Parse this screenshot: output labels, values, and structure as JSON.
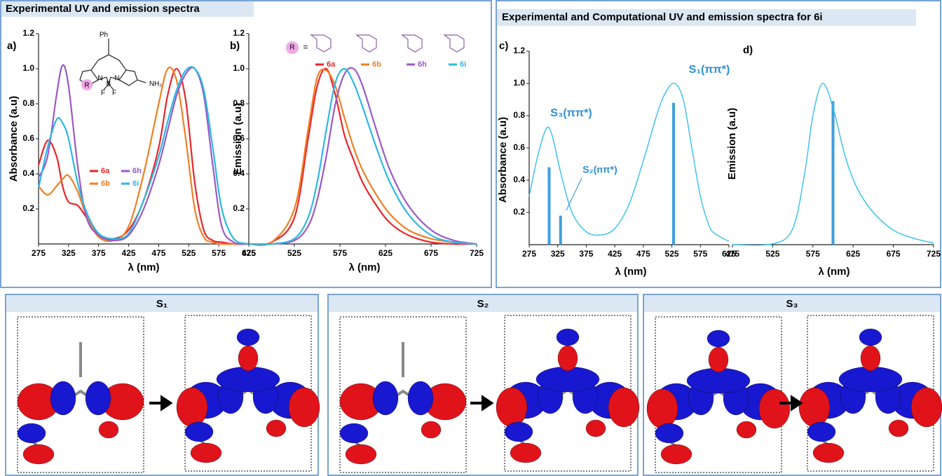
{
  "panels": {
    "left_title": "Experimental UV and emission spectra",
    "right_title": "Experimental and Computational UV and emission spectra for 6i"
  },
  "chart_data": [
    {
      "type": "line",
      "label": "a)",
      "y_label": "Absorbance (a.u)",
      "x_label": "λ (nm)",
      "structure_labels": [
        "Ph",
        "R",
        "N",
        "B",
        "N",
        "F",
        "F",
        "NH₂"
      ],
      "x": [
        275,
        290,
        305,
        315,
        325,
        340,
        355,
        375,
        400,
        425,
        450,
        475,
        490,
        505,
        520,
        535,
        550,
        565,
        580,
        600,
        625
      ],
      "xlim": [
        275,
        625
      ],
      "xticks": [
        275,
        325,
        375,
        425,
        475,
        525,
        575,
        625
      ],
      "ylim": [
        0,
        1.2
      ],
      "yticks": [
        0.2,
        0.4,
        0.6,
        0.8,
        {
          "value": 1,
          "label": "1.0"
        },
        1.2
      ],
      "series": [
        {
          "name": "6a",
          "color": "#e8262b",
          "values": [
            0.45,
            0.59,
            0.5,
            0.33,
            0.24,
            0.22,
            0.15,
            0.05,
            0.03,
            0.08,
            0.25,
            0.55,
            0.85,
            1.0,
            0.82,
            0.35,
            0.08,
            0.02,
            0.01,
            0,
            0
          ]
        },
        {
          "name": "6b",
          "color": "#f07f22",
          "values": [
            0.33,
            0.28,
            0.33,
            0.37,
            0.39,
            0.3,
            0.16,
            0.04,
            0.02,
            0.1,
            0.4,
            0.8,
            1.0,
            0.93,
            0.6,
            0.2,
            0.04,
            0.01,
            0,
            0,
            0
          ]
        },
        {
          "name": "6h",
          "color": "#9b59c6",
          "values": [
            0.38,
            0.5,
            0.85,
            1.02,
            0.9,
            0.45,
            0.15,
            0.05,
            0.02,
            0.05,
            0.2,
            0.45,
            0.65,
            0.85,
            0.97,
            1.0,
            0.85,
            0.45,
            0.1,
            0.01,
            0
          ]
        },
        {
          "name": "6i",
          "color": "#2cb7e4",
          "values": [
            0.32,
            0.55,
            0.71,
            0.69,
            0.6,
            0.35,
            0.18,
            0.06,
            0.03,
            0.06,
            0.25,
            0.5,
            0.7,
            0.88,
            0.99,
            1.0,
            0.88,
            0.55,
            0.2,
            0.03,
            0
          ]
        }
      ]
    },
    {
      "type": "line",
      "label": "b)",
      "y_label": "Emission (a.u)",
      "x_label": "λ (nm)",
      "inset_labels": [
        "R",
        "="
      ],
      "x": [
        475,
        500,
        525,
        540,
        550,
        560,
        570,
        580,
        590,
        600,
        615,
        630,
        650,
        675,
        700,
        725
      ],
      "xlim": [
        475,
        725
      ],
      "xticks": [
        475,
        525,
        575,
        625,
        675,
        725
      ],
      "ylim": [
        0,
        1.2
      ],
      "yticks": [
        0.2,
        0.4,
        0.6,
        0.8,
        {
          "value": 1,
          "label": "1.0"
        },
        1.2
      ],
      "series": [
        {
          "name": "6a",
          "color": "#e8262b",
          "values": [
            0,
            0.01,
            0.15,
            0.6,
            0.9,
            1.0,
            0.85,
            0.62,
            0.48,
            0.35,
            0.22,
            0.12,
            0.05,
            0.01,
            0,
            0
          ]
        },
        {
          "name": "6b",
          "color": "#f07f22",
          "values": [
            0,
            0.01,
            0.2,
            0.65,
            0.95,
            0.99,
            0.9,
            0.72,
            0.55,
            0.42,
            0.28,
            0.17,
            0.08,
            0.03,
            0.01,
            0
          ]
        },
        {
          "name": "6h",
          "color": "#9b59c6",
          "values": [
            0,
            0,
            0.02,
            0.1,
            0.25,
            0.5,
            0.8,
            0.97,
            1.0,
            0.9,
            0.65,
            0.42,
            0.22,
            0.08,
            0.02,
            0
          ]
        },
        {
          "name": "6i",
          "color": "#2cb7e4",
          "values": [
            0,
            0,
            0.03,
            0.15,
            0.35,
            0.65,
            0.92,
            1.0,
            0.92,
            0.78,
            0.55,
            0.35,
            0.17,
            0.05,
            0.01,
            0
          ]
        }
      ]
    },
    {
      "type": "line",
      "label": "c)",
      "y_label": "Absorbance (a.u)",
      "x_label": "λ (nm)",
      "annotations": [
        "S₁(ππ*)",
        "S₃(ππ*)",
        "S₂(nπ*)"
      ],
      "x": [
        275,
        290,
        305,
        315,
        330,
        350,
        375,
        400,
        425,
        450,
        475,
        500,
        515,
        530,
        545,
        560,
        575,
        590,
        600,
        625
      ],
      "xlim": [
        275,
        625
      ],
      "xticks": [
        275,
        325,
        375,
        425,
        475,
        525,
        575,
        625
      ],
      "ylim": [
        0,
        1.2
      ],
      "yticks": [
        0.2,
        0.4,
        0.6,
        0.8,
        {
          "value": 1,
          "label": "1.0"
        },
        1.2
      ],
      "series": [
        {
          "color": "#33c0ec",
          "values": [
            0.3,
            0.55,
            0.72,
            0.68,
            0.45,
            0.2,
            0.08,
            0.06,
            0.1,
            0.25,
            0.52,
            0.82,
            0.95,
            1.0,
            0.9,
            0.6,
            0.3,
            0.12,
            0.07,
            0.02
          ]
        }
      ],
      "transitions": {
        "color": "#3f9fdc",
        "x": [
          310,
          330,
          528
        ],
        "values": [
          0.48,
          0.18,
          0.88
        ]
      }
    },
    {
      "type": "line",
      "label": "d)",
      "y_label": "Emission (a.u)",
      "x_label": "λ (nm)",
      "x": [
        475,
        525,
        550,
        565,
        575,
        587,
        600,
        615,
        630,
        650,
        675,
        700,
        725
      ],
      "xlim": [
        475,
        725
      ],
      "xticks": [
        475,
        525,
        575,
        625,
        675,
        725
      ],
      "ylim": [
        0,
        1.2
      ],
      "series": [
        {
          "color": "#33c0ec",
          "values": [
            0,
            0.005,
            0.1,
            0.45,
            0.8,
            1.0,
            0.85,
            0.55,
            0.35,
            0.2,
            0.09,
            0.04,
            0.01
          ]
        }
      ],
      "transitions": {
        "color": "#3f9fdc",
        "x": [
          600
        ],
        "values": [
          0.89
        ]
      }
    }
  ],
  "orbital_panels": [
    {
      "title": "S₁"
    },
    {
      "title": "S₂"
    },
    {
      "title": "S₃"
    }
  ]
}
